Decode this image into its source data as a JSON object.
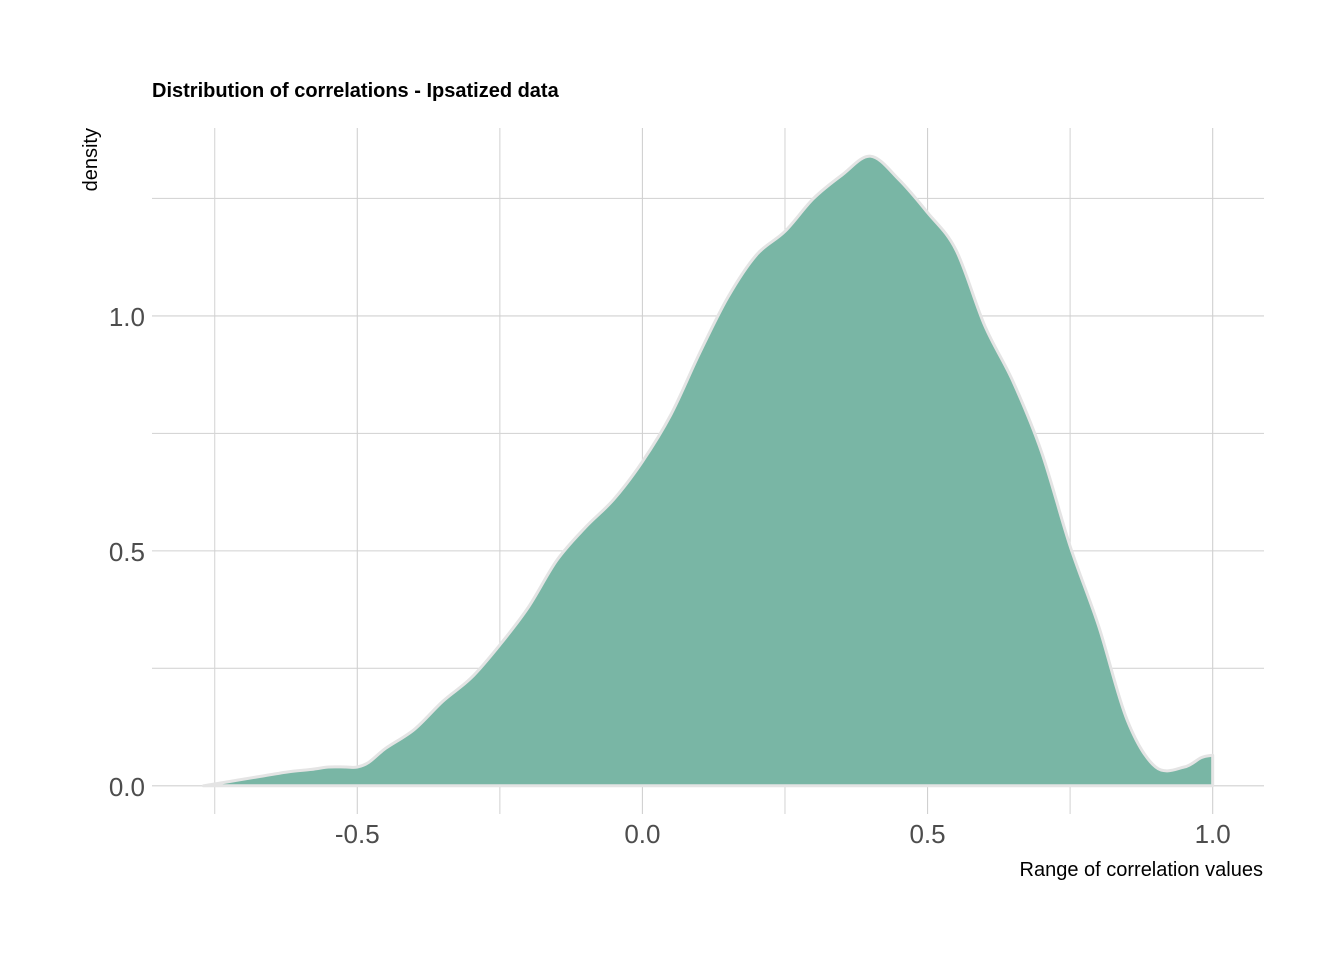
{
  "chart_data": {
    "type": "area",
    "title": "Distribution of correlations - Ipsatized data",
    "xlabel": "Range of correlation values",
    "ylabel": "density",
    "xlim": [
      -0.86,
      1.09
    ],
    "ylim": [
      -0.06,
      1.4
    ],
    "x_ticks": [
      -0.5,
      0.0,
      0.5,
      1.0
    ],
    "x_tick_labels": [
      "-0.5",
      "0.0",
      "0.5",
      "1.0"
    ],
    "x_minor_ticks": [
      -0.75,
      -0.25,
      0.25,
      0.75
    ],
    "y_ticks": [
      0.0,
      0.5,
      1.0
    ],
    "y_tick_labels": [
      "0.0",
      "0.5",
      "1.0"
    ],
    "y_minor_ticks": [
      0.25,
      0.75,
      1.25
    ],
    "grid": true,
    "legend": "none",
    "fill_color": "#79B6A5",
    "outline_color": "#E4E4E4",
    "series": [
      {
        "x": [
          -0.77,
          -0.72,
          -0.67,
          -0.62,
          -0.58,
          -0.55,
          -0.52,
          -0.5,
          -0.48,
          -0.45,
          -0.4,
          -0.35,
          -0.3,
          -0.25,
          -0.2,
          -0.15,
          -0.1,
          -0.05,
          0.0,
          0.05,
          0.1,
          0.15,
          0.2,
          0.25,
          0.3,
          0.35,
          0.4,
          0.45,
          0.5,
          0.55,
          0.6,
          0.65,
          0.7,
          0.75,
          0.8,
          0.85,
          0.9,
          0.95,
          0.98,
          1.0
        ],
        "y": [
          0.0,
          0.01,
          0.02,
          0.03,
          0.035,
          0.04,
          0.04,
          0.04,
          0.05,
          0.08,
          0.12,
          0.18,
          0.23,
          0.3,
          0.38,
          0.48,
          0.55,
          0.61,
          0.69,
          0.79,
          0.92,
          1.04,
          1.13,
          1.18,
          1.25,
          1.3,
          1.34,
          1.29,
          1.22,
          1.14,
          0.98,
          0.86,
          0.71,
          0.51,
          0.34,
          0.14,
          0.04,
          0.04,
          0.06,
          0.065
        ]
      }
    ]
  }
}
